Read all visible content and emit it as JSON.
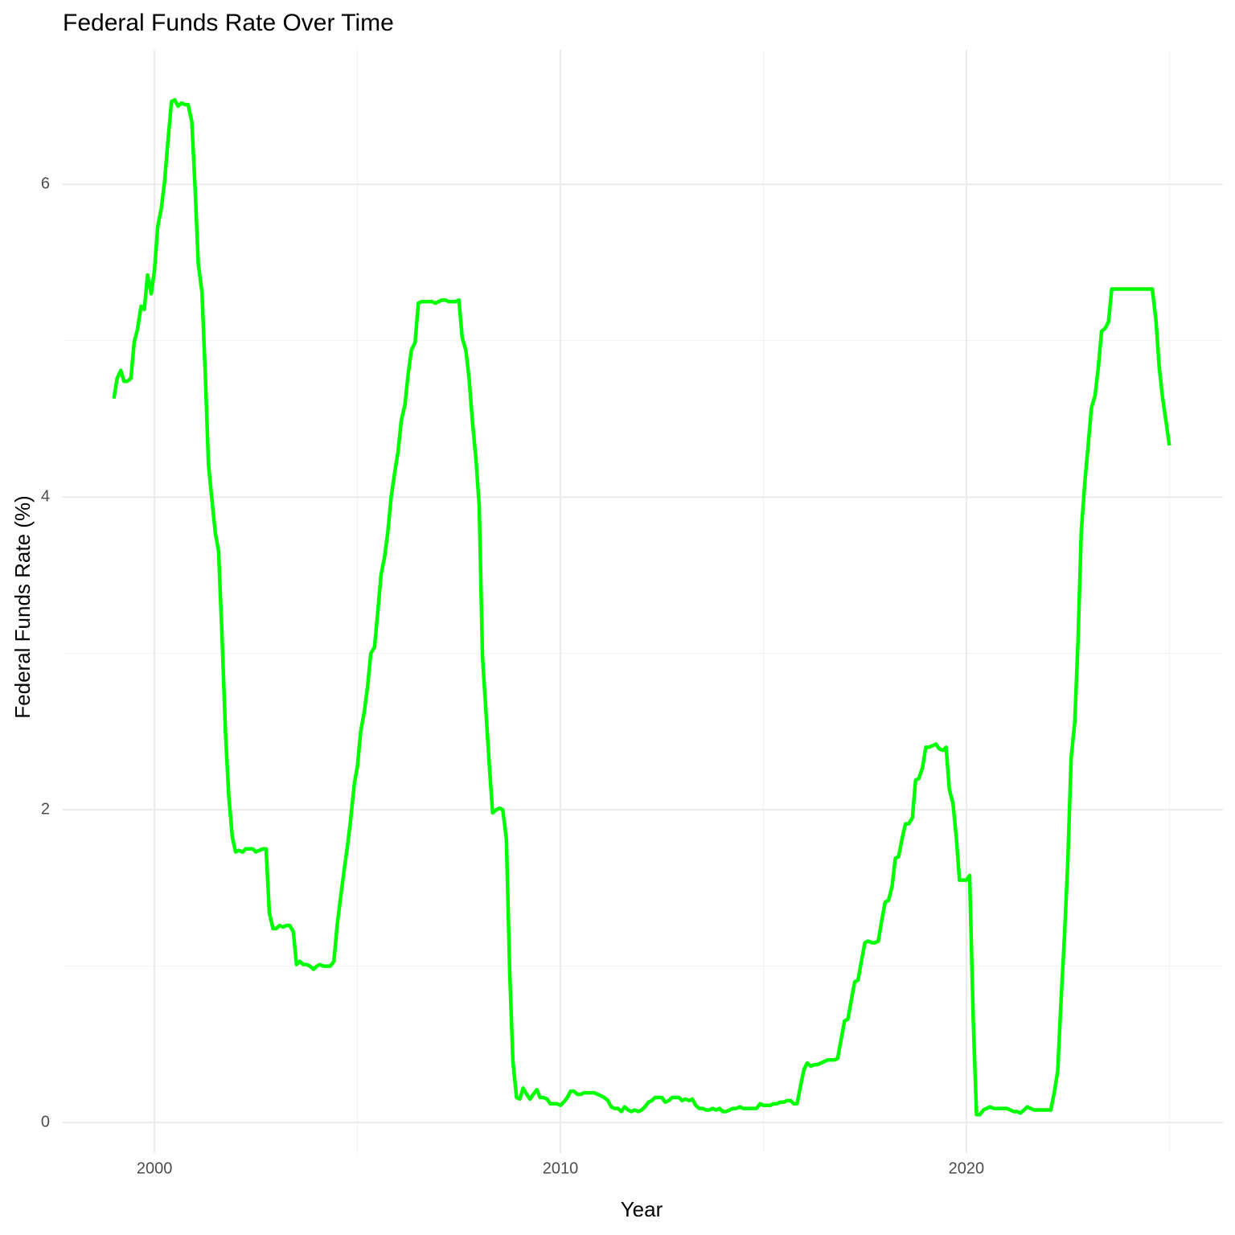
{
  "chart_data": {
    "type": "line",
    "title": "Federal Funds Rate Over Time",
    "xlabel": "Year",
    "ylabel": "Federal Funds Rate (%)",
    "color": "#00ff00",
    "grid": true,
    "xlim": [
      1997.74,
      2026.32
    ],
    "xticks": [
      2000,
      2010,
      2020
    ],
    "xminor": [
      2005,
      2015,
      2025
    ],
    "ylim": [
      -0.195,
      6.86
    ],
    "yticks": [
      0,
      2,
      4,
      6
    ],
    "yminor": [
      1,
      3,
      5
    ],
    "x": [
      1999.0,
      1999.08,
      1999.17,
      1999.25,
      1999.33,
      1999.42,
      1999.5,
      1999.58,
      1999.67,
      1999.75,
      1999.83,
      1999.92,
      2000.0,
      2000.08,
      2000.17,
      2000.25,
      2000.33,
      2000.42,
      2000.5,
      2000.58,
      2000.67,
      2000.75,
      2000.83,
      2000.92,
      2001.0,
      2001.08,
      2001.17,
      2001.25,
      2001.33,
      2001.42,
      2001.5,
      2001.58,
      2001.67,
      2001.75,
      2001.83,
      2001.92,
      2002.0,
      2002.08,
      2002.17,
      2002.25,
      2002.33,
      2002.42,
      2002.5,
      2002.58,
      2002.67,
      2002.75,
      2002.83,
      2002.92,
      2003.0,
      2003.08,
      2003.17,
      2003.25,
      2003.33,
      2003.42,
      2003.5,
      2003.58,
      2003.67,
      2003.75,
      2003.83,
      2003.92,
      2004.0,
      2004.08,
      2004.17,
      2004.25,
      2004.33,
      2004.42,
      2004.5,
      2004.58,
      2004.67,
      2004.75,
      2004.83,
      2004.92,
      2005.0,
      2005.08,
      2005.17,
      2005.25,
      2005.33,
      2005.42,
      2005.5,
      2005.58,
      2005.67,
      2005.75,
      2005.83,
      2005.92,
      2006.0,
      2006.08,
      2006.17,
      2006.25,
      2006.33,
      2006.42,
      2006.5,
      2006.58,
      2006.67,
      2006.75,
      2006.83,
      2006.92,
      2007.0,
      2007.08,
      2007.17,
      2007.25,
      2007.33,
      2007.42,
      2007.5,
      2007.58,
      2007.67,
      2007.75,
      2007.83,
      2007.92,
      2008.0,
      2008.08,
      2008.17,
      2008.25,
      2008.33,
      2008.42,
      2008.5,
      2008.58,
      2008.67,
      2008.75,
      2008.83,
      2008.92,
      2009.0,
      2009.08,
      2009.17,
      2009.25,
      2009.33,
      2009.42,
      2009.5,
      2009.58,
      2009.67,
      2009.75,
      2009.83,
      2009.92,
      2010.0,
      2010.08,
      2010.17,
      2010.25,
      2010.33,
      2010.42,
      2010.5,
      2010.58,
      2010.67,
      2010.75,
      2010.83,
      2010.92,
      2011.0,
      2011.08,
      2011.17,
      2011.25,
      2011.33,
      2011.42,
      2011.5,
      2011.58,
      2011.67,
      2011.75,
      2011.83,
      2011.92,
      2012.0,
      2012.08,
      2012.17,
      2012.25,
      2012.33,
      2012.42,
      2012.5,
      2012.58,
      2012.67,
      2012.75,
      2012.83,
      2012.92,
      2013.0,
      2013.08,
      2013.17,
      2013.25,
      2013.33,
      2013.42,
      2013.5,
      2013.58,
      2013.67,
      2013.75,
      2013.83,
      2013.92,
      2014.0,
      2014.08,
      2014.17,
      2014.25,
      2014.33,
      2014.42,
      2014.5,
      2014.58,
      2014.67,
      2014.75,
      2014.83,
      2014.92,
      2015.0,
      2015.08,
      2015.17,
      2015.25,
      2015.33,
      2015.42,
      2015.5,
      2015.58,
      2015.67,
      2015.75,
      2015.83,
      2015.92,
      2016.0,
      2016.08,
      2016.17,
      2016.25,
      2016.33,
      2016.42,
      2016.5,
      2016.58,
      2016.67,
      2016.75,
      2016.83,
      2016.92,
      2017.0,
      2017.08,
      2017.17,
      2017.25,
      2017.33,
      2017.42,
      2017.5,
      2017.58,
      2017.67,
      2017.75,
      2017.83,
      2017.92,
      2018.0,
      2018.08,
      2018.17,
      2018.25,
      2018.33,
      2018.42,
      2018.5,
      2018.58,
      2018.67,
      2018.75,
      2018.83,
      2018.92,
      2019.0,
      2019.08,
      2019.17,
      2019.25,
      2019.33,
      2019.42,
      2019.5,
      2019.58,
      2019.67,
      2019.75,
      2019.83,
      2019.92,
      2020.0,
      2020.08,
      2020.17,
      2020.25,
      2020.33,
      2020.42,
      2020.5,
      2020.58,
      2020.67,
      2020.75,
      2020.83,
      2020.92,
      2021.0,
      2021.08,
      2021.17,
      2021.25,
      2021.33,
      2021.42,
      2021.5,
      2021.58,
      2021.67,
      2021.75,
      2021.83,
      2021.92,
      2022.0,
      2022.08,
      2022.17,
      2022.25,
      2022.33,
      2022.42,
      2022.5,
      2022.58,
      2022.67,
      2022.75,
      2022.83,
      2022.92,
      2023.0,
      2023.08,
      2023.17,
      2023.25,
      2023.33,
      2023.42,
      2023.5,
      2023.58,
      2023.67,
      2023.75,
      2023.83,
      2023.92,
      2024.0,
      2024.08,
      2024.17,
      2024.25,
      2024.33,
      2024.42,
      2024.5,
      2024.58,
      2024.67,
      2024.75,
      2024.83,
      2024.92,
      2025.0
    ],
    "values": [
      4.63,
      4.76,
      4.81,
      4.74,
      4.74,
      4.76,
      4.99,
      5.07,
      5.22,
      5.2,
      5.42,
      5.3,
      5.45,
      5.73,
      5.85,
      6.02,
      6.27,
      6.53,
      6.54,
      6.5,
      6.52,
      6.51,
      6.51,
      6.4,
      5.98,
      5.49,
      5.31,
      4.8,
      4.21,
      3.97,
      3.77,
      3.65,
      3.07,
      2.49,
      2.09,
      1.82,
      1.73,
      1.74,
      1.73,
      1.75,
      1.75,
      1.75,
      1.73,
      1.74,
      1.75,
      1.75,
      1.34,
      1.24,
      1.24,
      1.26,
      1.25,
      1.26,
      1.26,
      1.22,
      1.01,
      1.03,
      1.01,
      1.01,
      1.0,
      0.98,
      1.0,
      1.01,
      1.0,
      1.0,
      1.0,
      1.03,
      1.26,
      1.43,
      1.61,
      1.76,
      1.93,
      2.16,
      2.28,
      2.5,
      2.63,
      2.79,
      3.0,
      3.04,
      3.26,
      3.5,
      3.62,
      3.78,
      4.0,
      4.16,
      4.29,
      4.49,
      4.59,
      4.79,
      4.94,
      4.99,
      5.24,
      5.25,
      5.25,
      5.25,
      5.25,
      5.24,
      5.25,
      5.26,
      5.26,
      5.25,
      5.25,
      5.25,
      5.26,
      5.02,
      4.94,
      4.76,
      4.49,
      4.24,
      3.94,
      2.98,
      2.61,
      2.28,
      1.98,
      2.0,
      2.01,
      2.0,
      1.81,
      0.97,
      0.39,
      0.16,
      0.15,
      0.22,
      0.18,
      0.15,
      0.18,
      0.21,
      0.16,
      0.16,
      0.15,
      0.12,
      0.12,
      0.12,
      0.11,
      0.13,
      0.16,
      0.2,
      0.2,
      0.18,
      0.18,
      0.19,
      0.19,
      0.19,
      0.19,
      0.18,
      0.17,
      0.16,
      0.14,
      0.1,
      0.09,
      0.09,
      0.07,
      0.1,
      0.08,
      0.07,
      0.08,
      0.07,
      0.08,
      0.1,
      0.13,
      0.14,
      0.16,
      0.16,
      0.16,
      0.13,
      0.14,
      0.16,
      0.16,
      0.16,
      0.14,
      0.15,
      0.14,
      0.15,
      0.11,
      0.09,
      0.09,
      0.08,
      0.08,
      0.09,
      0.08,
      0.09,
      0.07,
      0.07,
      0.08,
      0.09,
      0.09,
      0.1,
      0.09,
      0.09,
      0.09,
      0.09,
      0.09,
      0.12,
      0.11,
      0.11,
      0.11,
      0.12,
      0.12,
      0.13,
      0.13,
      0.14,
      0.14,
      0.12,
      0.12,
      0.24,
      0.34,
      0.38,
      0.36,
      0.37,
      0.37,
      0.38,
      0.39,
      0.4,
      0.4,
      0.4,
      0.41,
      0.54,
      0.65,
      0.66,
      0.79,
      0.9,
      0.91,
      1.04,
      1.15,
      1.16,
      1.15,
      1.15,
      1.16,
      1.3,
      1.41,
      1.42,
      1.51,
      1.69,
      1.7,
      1.82,
      1.91,
      1.91,
      1.95,
      2.19,
      2.2,
      2.27,
      2.4,
      2.4,
      2.41,
      2.42,
      2.39,
      2.38,
      2.4,
      2.13,
      2.04,
      1.83,
      1.55,
      1.55,
      1.55,
      1.58,
      0.65,
      0.05,
      0.05,
      0.08,
      0.09,
      0.1,
      0.09,
      0.09,
      0.09,
      0.09,
      0.09,
      0.08,
      0.07,
      0.07,
      0.06,
      0.08,
      0.1,
      0.09,
      0.08,
      0.08,
      0.08,
      0.08,
      0.08,
      0.08,
      0.2,
      0.33,
      0.77,
      1.21,
      1.68,
      2.33,
      2.56,
      3.08,
      3.78,
      4.1,
      4.33,
      4.57,
      4.65,
      4.83,
      5.06,
      5.08,
      5.12,
      5.33,
      5.33,
      5.33,
      5.33,
      5.33,
      5.33,
      5.33,
      5.33,
      5.33,
      5.33,
      5.33,
      5.33,
      5.33,
      5.13,
      4.83,
      4.64,
      4.48,
      4.33
    ]
  }
}
